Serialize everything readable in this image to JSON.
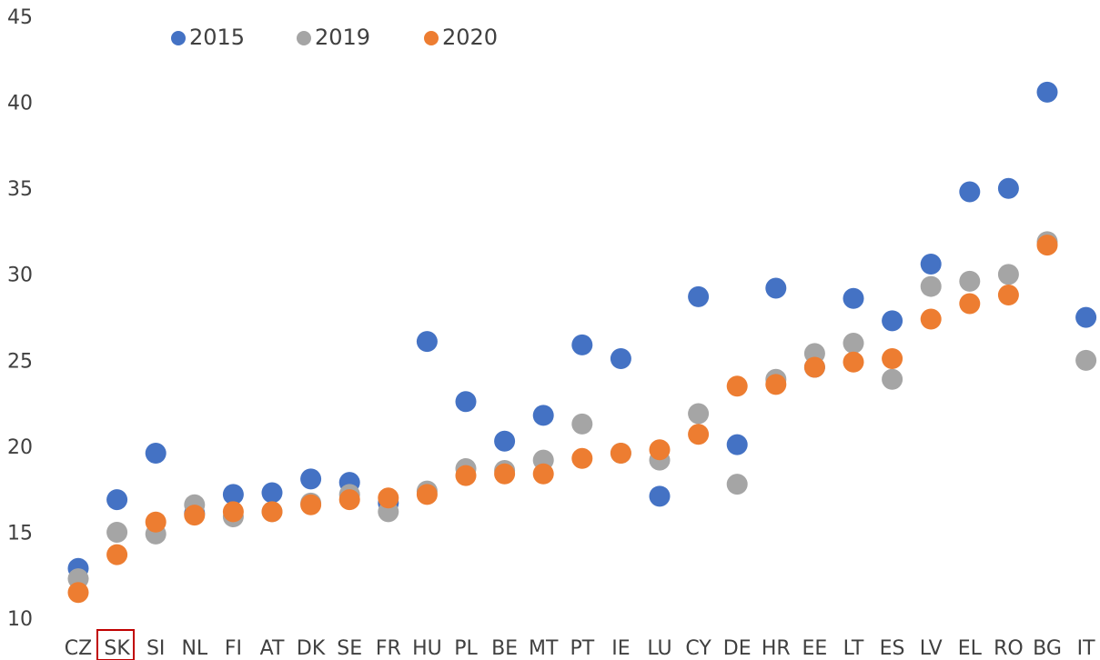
{
  "chart_data": {
    "type": "dot",
    "categories": [
      "CZ",
      "SK",
      "SI",
      "NL",
      "FI",
      "AT",
      "DK",
      "SE",
      "FR",
      "HU",
      "PL",
      "BE",
      "MT",
      "PT",
      "IE",
      "LU",
      "CY",
      "DE",
      "HR",
      "EE",
      "LT",
      "ES",
      "LV",
      "EL",
      "RO",
      "BG",
      "IT"
    ],
    "series": [
      {
        "name": "2015",
        "color": "#4472c4",
        "values": [
          13.0,
          17.0,
          19.7,
          16.2,
          17.3,
          17.4,
          18.2,
          18.0,
          16.8,
          26.2,
          22.7,
          20.4,
          21.9,
          26.0,
          25.2,
          17.2,
          28.8,
          20.2,
          29.3,
          24.7,
          28.7,
          27.4,
          30.7,
          34.9,
          35.1,
          40.7,
          27.6
        ]
      },
      {
        "name": "2019",
        "color": "#a5a5a5",
        "values": [
          12.4,
          15.1,
          15.0,
          16.7,
          16.0,
          16.3,
          16.8,
          17.3,
          16.3,
          17.5,
          18.8,
          18.7,
          19.3,
          21.4,
          19.7,
          19.3,
          22.0,
          17.9,
          24.0,
          25.5,
          26.1,
          24.0,
          29.4,
          29.7,
          30.1,
          32.0,
          25.1
        ]
      },
      {
        "name": "2020",
        "color": "#ed7d31",
        "values": [
          11.6,
          13.8,
          15.7,
          16.1,
          16.3,
          16.3,
          16.7,
          17.0,
          17.1,
          17.3,
          18.4,
          18.5,
          18.5,
          19.4,
          19.7,
          19.9,
          20.8,
          23.6,
          23.7,
          24.7,
          25.0,
          25.2,
          27.5,
          28.4,
          28.9,
          31.8,
          null
        ]
      }
    ],
    "ylim": [
      10,
      45
    ],
    "yticks": [
      10,
      15,
      20,
      25,
      30,
      35,
      40,
      45
    ],
    "grid": false,
    "legend": "top"
  }
}
